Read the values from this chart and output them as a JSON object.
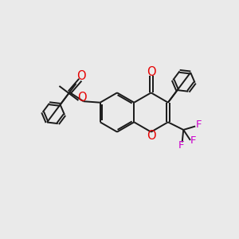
{
  "bg_color": "#eaeaea",
  "bond_color": "#1a1a1a",
  "bond_width": 1.4,
  "atom_colors": {
    "O": "#e60000",
    "F": "#cc00cc",
    "default": "#1a1a1a"
  },
  "font_size": 9.5,
  "xlim": [
    0,
    10
  ],
  "ylim": [
    0,
    10
  ]
}
